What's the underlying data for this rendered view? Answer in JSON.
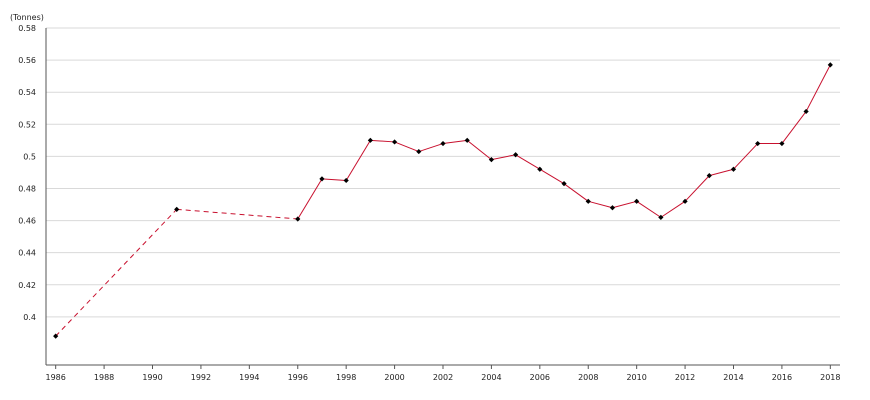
{
  "chart_data": {
    "type": "line",
    "title": "",
    "xlabel": "",
    "ylabel": "(Tonnes)",
    "xlim": [
      1986,
      2018
    ],
    "ylim": [
      0.37,
      0.58
    ],
    "x_ticks": [
      1986,
      1988,
      1990,
      1992,
      1994,
      1996,
      1998,
      2000,
      2002,
      2004,
      2006,
      2008,
      2010,
      2012,
      2014,
      2016,
      2018
    ],
    "y_ticks": [
      0.4,
      0.42,
      0.44,
      0.46,
      0.48,
      0.5,
      0.52,
      0.54,
      0.56,
      0.58
    ],
    "y_tick_labels": [
      "0.4",
      "0.42",
      "0.44",
      "0.46",
      "0.48",
      "0.5",
      "0.52",
      "0.54",
      "0.56",
      "0.58"
    ],
    "grid": true,
    "legend": "none",
    "line_color": "#c8102e",
    "marker_color": "#000000",
    "series": [
      {
        "x": [
          1986,
          1991,
          1996,
          1997,
          1998,
          1999,
          2000,
          2001,
          2002,
          2003,
          2004,
          2005,
          2006,
          2007,
          2008,
          2009,
          2010,
          2011,
          2012,
          2013,
          2014,
          2015,
          2016,
          2017,
          2018
        ],
        "values": [
          0.388,
          0.467,
          0.461,
          0.486,
          0.485,
          0.51,
          0.509,
          0.503,
          0.508,
          0.51,
          0.498,
          0.501,
          0.492,
          0.483,
          0.472,
          0.468,
          0.472,
          0.462,
          0.472,
          0.488,
          0.492,
          0.508,
          0.508,
          0.528,
          0.557
        ]
      }
    ]
  }
}
